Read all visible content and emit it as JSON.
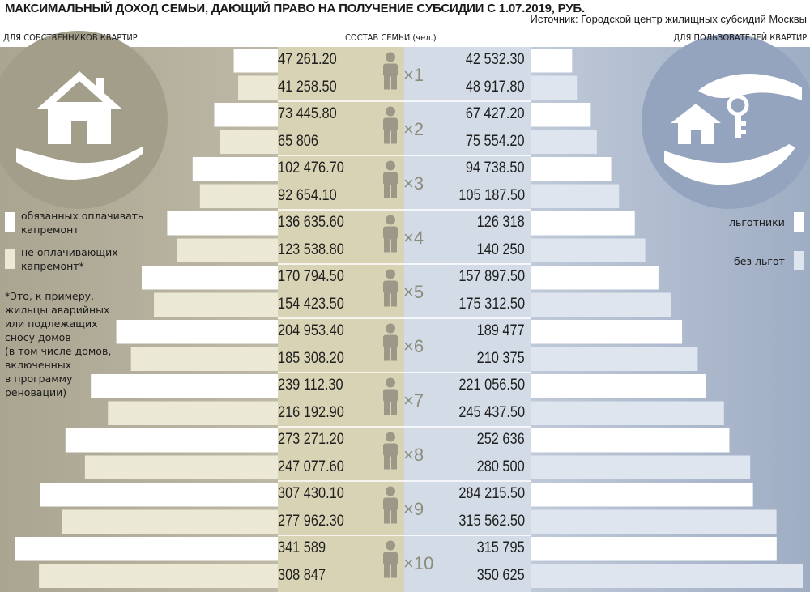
{
  "title": "МАКСИМАЛЬНЫЙ ДОХОД СЕМЬИ, ДАЮЩИЙ ПРАВО НА ПОЛУЧЕНИЕ СУБСИДИИ С 1.07.2019, РУБ.",
  "source": "Источник: Городской центр жилищных субсидий Москвы",
  "headers": {
    "left": "ДЛЯ СОБСТВЕННИКОВ КВАРТИР",
    "middle": "СОСТАВ СЕМЬИ (чел.)",
    "right": "ДЛЯ ПОЛЬЗОВАТЕЛЕЙ КВАРТИР"
  },
  "legend_left": {
    "paying": "обязанных оплачивать\nкапремонт",
    "not_paying": "не оплачивающих\nкапремонт*"
  },
  "legend_right": {
    "privileged": "льготники",
    "no_privileges": "без льгот"
  },
  "footnote": "*Это, к примеру,\nжильцы аварийных\nили подлежащих\nсносу домов\n(в том числе домов,\nвключенных\nв программу\nреновации)",
  "icons": [
    "house-on-hand-icon",
    "key-house-hand-icon",
    "person-icon"
  ],
  "colors": {
    "left_panel": "#b0ac99",
    "left_panel_dark": "#a5a08c",
    "center_left": "#d8d3b4",
    "center_right": "#d2dbe6",
    "right_panel": "#a9b6cb",
    "bar_owner_paying": "#ffffff",
    "bar_owner_not_paying": "#ece8d6",
    "bar_user_privileged": "#ffffff",
    "bar_user_no_privileges": "#dfe5ef",
    "person": "#9b9888"
  },
  "chart_data": {
    "type": "bar",
    "categories": [
      "×1",
      "×2",
      "×3",
      "×4",
      "×5",
      "×6",
      "×7",
      "×8",
      "×9",
      "×10"
    ],
    "series": [
      {
        "name": "обязанных оплачивать капремонт",
        "side": "left",
        "values": [
          "47 261.20",
          "73 445.80",
          "102 476.70",
          "136 635.60",
          "170 794.50",
          "204 953.40",
          "239 112.30",
          "273 271.20",
          "307 430.10",
          "341 589"
        ]
      },
      {
        "name": "не оплачивающих капремонт*",
        "side": "left",
        "values": [
          "41 258.50",
          "65 806",
          "92 654.10",
          "123 538.80",
          "154 423.50",
          "185 308.20",
          "216 192.90",
          "247 077.60",
          "277 962.30",
          "308 847"
        ]
      },
      {
        "name": "льготники",
        "side": "right",
        "values": [
          "42 532.30",
          "67 427.20",
          "94 738.50",
          "126 318",
          "157 897.50",
          "189 477",
          "221 056.50",
          "252 636",
          "284 215.50",
          "315 795"
        ]
      },
      {
        "name": "без льгот",
        "side": "right",
        "values": [
          "48 917.80",
          "75 554.20",
          "105 187.50",
          "140 250",
          "175 312.50",
          "210 375",
          "245 437.50",
          "280 500",
          "315 562.50",
          "350 625"
        ]
      }
    ]
  }
}
